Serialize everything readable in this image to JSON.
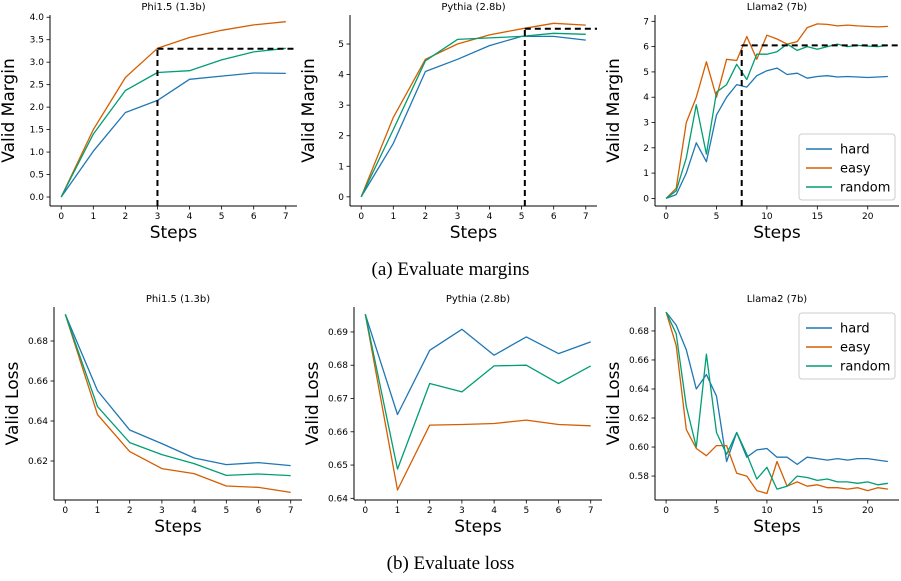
{
  "captions": {
    "a": "(a) Evaluate margins",
    "b": "(b) Evaluate loss"
  },
  "colors": {
    "hard": "#1f77b4",
    "easy": "#d55e00",
    "random": "#009e73",
    "threshold_line": "#000000"
  },
  "legend_labels": [
    "hard",
    "easy",
    "random"
  ],
  "chart_data": [
    {
      "type": "line",
      "title": "Phi1.5 (1.3b)",
      "xlabel": "Steps",
      "ylabel": "Valid Margin",
      "xlim": [
        -0.35,
        7.35
      ],
      "ylim": [
        -0.2,
        4.05
      ],
      "xticks": [
        0,
        1,
        2,
        3,
        4,
        5,
        6,
        7
      ],
      "yticks": [
        0.0,
        0.5,
        1.0,
        1.5,
        2.0,
        2.5,
        3.0,
        3.5,
        4.0
      ],
      "x": [
        0,
        1,
        2,
        3,
        4,
        5,
        6,
        7
      ],
      "series": [
        {
          "key": "hard",
          "values": [
            0.0,
            1.02,
            1.88,
            2.15,
            2.62,
            2.69,
            2.76,
            2.75
          ]
        },
        {
          "key": "easy",
          "values": [
            0.0,
            1.5,
            2.66,
            3.31,
            3.55,
            3.71,
            3.83,
            3.9
          ]
        },
        {
          "key": "random",
          "values": [
            0.0,
            1.4,
            2.37,
            2.77,
            2.81,
            3.05,
            3.23,
            3.31
          ]
        }
      ],
      "threshold": {
        "x": 3,
        "y": 3.3
      },
      "legend": false
    },
    {
      "type": "line",
      "title": "Pythia (2.8b)",
      "xlabel": "Steps",
      "ylabel": "Valid Margin",
      "xlim": [
        -0.35,
        7.35
      ],
      "ylim": [
        -0.3,
        5.95
      ],
      "xticks": [
        0,
        1,
        2,
        3,
        4,
        5,
        6,
        7
      ],
      "yticks": [
        0,
        1,
        2,
        3,
        4,
        5
      ],
      "x": [
        0,
        1,
        2,
        3,
        4,
        5,
        6,
        7
      ],
      "series": [
        {
          "key": "hard",
          "values": [
            0.0,
            1.75,
            4.1,
            4.5,
            4.95,
            5.25,
            5.25,
            5.13
          ]
        },
        {
          "key": "easy",
          "values": [
            0.0,
            2.6,
            4.5,
            5.0,
            5.3,
            5.5,
            5.68,
            5.62
          ]
        },
        {
          "key": "random",
          "values": [
            0.0,
            2.2,
            4.45,
            5.15,
            5.2,
            5.25,
            5.35,
            5.32
          ]
        }
      ],
      "threshold": {
        "x": 5.1,
        "y": 5.5
      },
      "legend": false
    },
    {
      "type": "line",
      "title": "Llama2 (7b)",
      "xlabel": "Steps",
      "ylabel": "Valid Margin",
      "xlim": [
        -1.1,
        23.1
      ],
      "ylim": [
        -0.3,
        7.25
      ],
      "xticks": [
        0,
        5,
        10,
        15,
        20
      ],
      "yticks": [
        0,
        1,
        2,
        3,
        4,
        5,
        6,
        7
      ],
      "x": [
        0,
        1,
        2,
        3,
        4,
        5,
        6,
        7,
        8,
        9,
        10,
        11,
        12,
        13,
        14,
        15,
        16,
        17,
        18,
        19,
        20,
        21,
        22
      ],
      "series": [
        {
          "key": "hard",
          "values": [
            0.0,
            0.15,
            1.0,
            2.2,
            1.45,
            3.3,
            4.0,
            4.5,
            4.4,
            4.85,
            5.05,
            5.15,
            4.9,
            4.95,
            4.75,
            4.82,
            4.85,
            4.8,
            4.82,
            4.8,
            4.78,
            4.8,
            4.82
          ]
        },
        {
          "key": "easy",
          "values": [
            0.0,
            0.4,
            3.0,
            4.0,
            5.4,
            4.0,
            5.5,
            5.45,
            6.4,
            5.5,
            6.45,
            6.3,
            6.1,
            6.2,
            6.75,
            6.9,
            6.88,
            6.82,
            6.85,
            6.82,
            6.8,
            6.78,
            6.8
          ]
        },
        {
          "key": "random",
          "values": [
            0.0,
            0.3,
            1.6,
            3.7,
            1.75,
            4.2,
            4.5,
            5.3,
            4.7,
            5.7,
            5.7,
            5.8,
            6.1,
            5.85,
            6.0,
            5.9,
            6.0,
            6.1,
            6.0,
            6.05,
            6.02,
            6.0,
            6.05
          ]
        }
      ],
      "threshold": {
        "x": 7.5,
        "y": 6.05
      },
      "legend": true,
      "legend_loc": "lower right"
    },
    {
      "type": "line",
      "title": "Phi1.5 (1.3b)",
      "xlabel": "Steps",
      "ylabel": "Valid Loss",
      "xlim": [
        -0.35,
        7.35
      ],
      "ylim": [
        0.6005,
        0.697
      ],
      "xticks": [
        0,
        1,
        2,
        3,
        4,
        5,
        6,
        7
      ],
      "yticks": [
        0.62,
        0.64,
        0.66,
        0.68
      ],
      "x": [
        0,
        1,
        2,
        3,
        4,
        5,
        6,
        7
      ],
      "series": [
        {
          "key": "hard",
          "values": [
            0.6933,
            0.6552,
            0.6355,
            0.6287,
            0.6215,
            0.6182,
            0.6192,
            0.6177
          ]
        },
        {
          "key": "easy",
          "values": [
            0.6933,
            0.6432,
            0.6247,
            0.6162,
            0.6137,
            0.6075,
            0.6068,
            0.6043
          ]
        },
        {
          "key": "random",
          "values": [
            0.6933,
            0.6472,
            0.6292,
            0.6232,
            0.6187,
            0.6128,
            0.6135,
            0.6127
          ]
        }
      ],
      "legend": false
    },
    {
      "type": "line",
      "title": "Pythia (2.8b)",
      "xlabel": "Steps",
      "ylabel": "Valid Loss",
      "xlim": [
        -0.35,
        7.35
      ],
      "ylim": [
        0.6395,
        0.6975
      ],
      "xticks": [
        0,
        1,
        2,
        3,
        4,
        5,
        6,
        7
      ],
      "yticks": [
        0.64,
        0.65,
        0.66,
        0.67,
        0.68,
        0.69
      ],
      "x": [
        0,
        1,
        2,
        3,
        4,
        5,
        6,
        7
      ],
      "series": [
        {
          "key": "hard",
          "values": [
            0.6953,
            0.6652,
            0.6845,
            0.6908,
            0.683,
            0.6885,
            0.6835,
            0.687
          ]
        },
        {
          "key": "easy",
          "values": [
            0.6953,
            0.6425,
            0.662,
            0.6622,
            0.6625,
            0.6635,
            0.6622,
            0.6618
          ]
        },
        {
          "key": "random",
          "values": [
            0.6953,
            0.6488,
            0.6745,
            0.672,
            0.6798,
            0.68,
            0.6745,
            0.6798
          ]
        }
      ],
      "legend": false
    },
    {
      "type": "line",
      "title": "Llama2 (7b)",
      "xlabel": "Steps",
      "ylabel": "Valid Loss",
      "xlim": [
        -1.1,
        23.1
      ],
      "ylim": [
        0.5635,
        0.6965
      ],
      "xticks": [
        0,
        5,
        10,
        15,
        20
      ],
      "yticks": [
        0.58,
        0.6,
        0.62,
        0.64,
        0.66,
        0.68
      ],
      "x": [
        0,
        1,
        2,
        3,
        4,
        5,
        6,
        7,
        8,
        9,
        10,
        11,
        12,
        13,
        14,
        15,
        16,
        17,
        18,
        19,
        20,
        21,
        22
      ],
      "series": [
        {
          "key": "hard",
          "values": [
            0.693,
            0.684,
            0.667,
            0.64,
            0.65,
            0.635,
            0.59,
            0.61,
            0.593,
            0.598,
            0.599,
            0.593,
            0.593,
            0.588,
            0.593,
            0.592,
            0.591,
            0.592,
            0.591,
            0.592,
            0.592,
            0.591,
            0.59
          ]
        },
        {
          "key": "easy",
          "values": [
            0.693,
            0.67,
            0.612,
            0.599,
            0.594,
            0.601,
            0.601,
            0.582,
            0.58,
            0.57,
            0.568,
            0.59,
            0.573,
            0.576,
            0.573,
            0.574,
            0.572,
            0.572,
            0.571,
            0.572,
            0.57,
            0.572,
            0.571
          ]
        },
        {
          "key": "random",
          "values": [
            0.693,
            0.678,
            0.628,
            0.6,
            0.664,
            0.61,
            0.595,
            0.61,
            0.595,
            0.578,
            0.586,
            0.571,
            0.573,
            0.58,
            0.579,
            0.577,
            0.578,
            0.576,
            0.576,
            0.575,
            0.576,
            0.574,
            0.575
          ]
        }
      ],
      "legend": true,
      "legend_loc": "upper right"
    }
  ]
}
